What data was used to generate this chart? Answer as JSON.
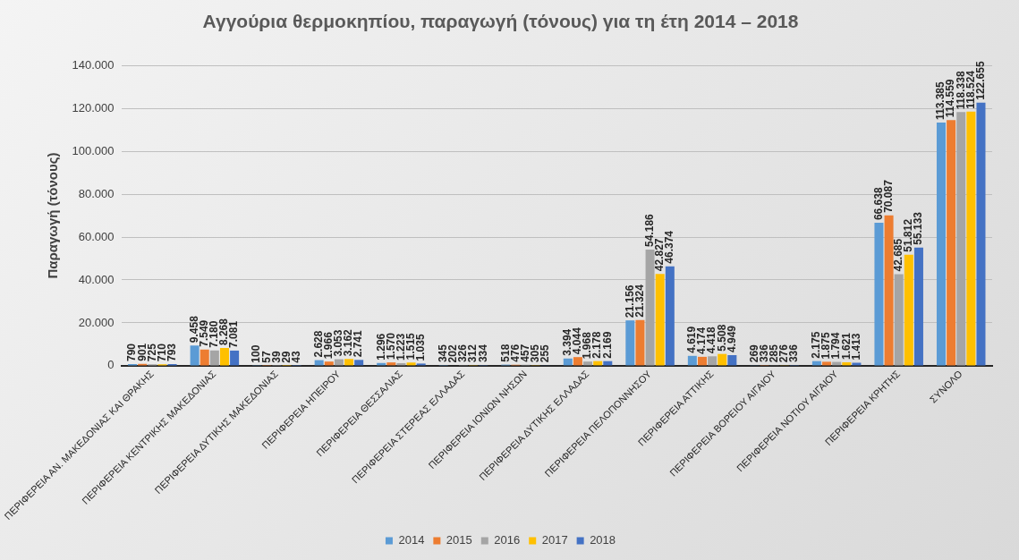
{
  "chart_data": {
    "type": "bar",
    "title": "Αγγούρια θερμοκηπίου, παραγωγή (τόνους) για τη έτη 2014 – 2018",
    "ylabel": "Παραγωγή (τόνους)",
    "categories": [
      "ΠΕΡΙΦΕΡΕΙΑ ΑΝ. ΜΑΚΕΔΟΝΙΑΣ ΚΑΙ ΘΡΑΚΗΣ",
      "ΠΕΡΙΦΕΡΕΙΑ ΚΕΝΤΡΙΚΗΣ ΜΑΚΕΔΟΝΙΑΣ",
      "ΠΕΡΙΦΕΡΕΙΑ ΔΥΤΙΚΗΣ ΜΑΚΕΔΟΝΙΑΣ",
      "ΠΕΡΙΦΕΡΕΙΑ ΗΠΕΙΡΟΥ",
      "ΠΕΡΙΦΕΡΕΙΑ ΘΕΣΣΑΛΙΑΣ",
      "ΠΕΡΙΦΕΡΕΙΑ ΣΤΕΡΕΑΣ ΕΛΛΑΔΑΣ",
      "ΠΕΡΙΦΕΡΕΙΑ ΙΟΝΙΩΝ ΝΗΣΩΝ",
      "ΠΕΡΙΦΕΡΕΙΑ ΔΥΤΙΚΗΣ ΕΛΛΑΔΑΣ",
      "ΠΕΡΙΦΕΡΕΙΑ ΠΕΛΟΠΟΝΝΗΣΟΥ",
      "ΠΕΡΙΦΕΡΕΙΑ ΑΤΤΙΚΗΣ",
      "ΠΕΡΙΦΕΡΕΙΑ ΒΟΡΕΙΟΥ ΑΙΓΑΙΟΥ",
      "ΠΕΡΙΦΕΡΕΙΑ ΝΟΤΙΟΥ ΑΙΓΑΙΟΥ",
      "ΠΕΡΙΦΕΡΕΙΑ ΚΡΗΤΗΣ",
      "ΣΥΝΟΛΟ"
    ],
    "series": [
      {
        "name": "2014",
        "color": "#5b9bd5",
        "values": [
          790,
          9458,
          100,
          2628,
          1296,
          345,
          518,
          3394,
          21156,
          4619,
          269,
          2175,
          66638,
          113385
        ],
        "value_labels": [
          "790",
          "9.458",
          "100",
          "2.628",
          "1.296",
          "345",
          "518",
          "3.394",
          "21.156",
          "4.619",
          "269",
          "2.175",
          "66.638",
          "113.385"
        ]
      },
      {
        "name": "2015",
        "color": "#ed7d31",
        "values": [
          901,
          7549,
          57,
          1966,
          1570,
          202,
          476,
          4044,
          21324,
          4174,
          336,
          1875,
          70087,
          114559
        ],
        "value_labels": [
          "901",
          "7.549",
          "57",
          "1.966",
          "1.570",
          "202",
          "476",
          "4.044",
          "21.324",
          "4.174",
          "336",
          "1.875",
          "70.087",
          "114.559"
        ]
      },
      {
        "name": "2016",
        "color": "#a5a5a5",
        "values": [
          725,
          7180,
          39,
          3053,
          1223,
          326,
          457,
          1968,
          54186,
          4418,
          285,
          1794,
          42685,
          118338
        ],
        "value_labels": [
          "725",
          "7.180",
          "39",
          "3.053",
          "1.223",
          "326",
          "457",
          "1.968",
          "54.186",
          "4.418",
          "285",
          "1.794",
          "42.685",
          "118.338"
        ]
      },
      {
        "name": "2017",
        "color": "#ffc000",
        "values": [
          710,
          8268,
          29,
          3162,
          1515,
          312,
          305,
          2178,
          42827,
          5508,
          276,
          1621,
          51812,
          118524
        ],
        "value_labels": [
          "710",
          "8.268",
          "29",
          "3.162",
          "1.515",
          "312",
          "305",
          "2.178",
          "42.827",
          "5.508",
          "276",
          "1.621",
          "51.812",
          "118.524"
        ]
      },
      {
        "name": "2018",
        "color": "#4472c4",
        "values": [
          793,
          7081,
          43,
          2741,
          1035,
          334,
          255,
          2169,
          46374,
          4949,
          336,
          1413,
          55133,
          122655
        ],
        "value_labels": [
          "793",
          "7.081",
          "43",
          "2.741",
          "1.035",
          "334",
          "255",
          "2.169",
          "46.374",
          "4.949",
          "336",
          "1.413",
          "55.133",
          "122.655"
        ]
      }
    ],
    "ylim": [
      0,
      140000
    ],
    "yticks": [
      0,
      {
        "value": 20000,
        "label": "20.000"
      },
      {
        "value": 40000,
        "label": "40.000"
      },
      {
        "value": 60000,
        "label": "60.000"
      },
      {
        "value": 80000,
        "label": "80.000"
      },
      {
        "value": 100000,
        "label": "100.000"
      },
      {
        "value": 120000,
        "label": "120.000"
      },
      {
        "value": 140000,
        "label": "140.000"
      }
    ],
    "grid": "y",
    "legend": "bottom"
  }
}
